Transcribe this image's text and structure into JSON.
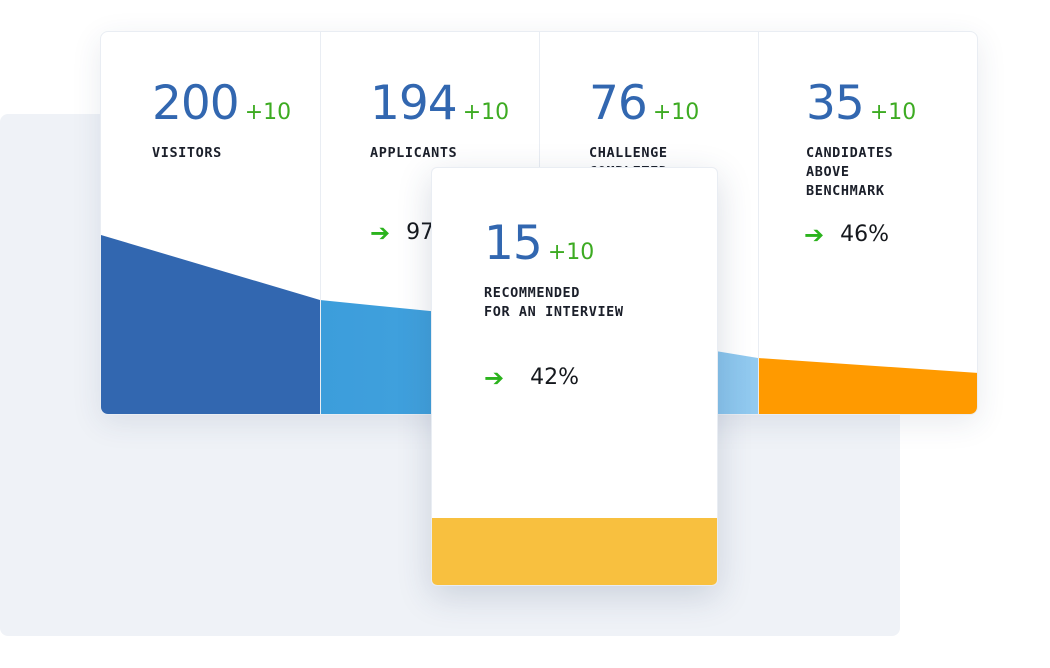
{
  "colors": {
    "number": "#3267b0",
    "delta": "#3dab22",
    "arrow": "#2bb31d",
    "stage_visitors": "#3267b0",
    "stage_applicants": "#3fa0db",
    "stage_challenge": "#8cc6ee",
    "stage_benchmark": "#ff9a00",
    "stage_recommended": "#f8c03f"
  },
  "stages": [
    {
      "value": "200",
      "delta": "+10",
      "label": "VISITORS",
      "rate": ""
    },
    {
      "value": "194",
      "delta": "+10",
      "label": "APPLICANTS",
      "rate": "97%"
    },
    {
      "value": "76",
      "delta": "+10",
      "label": "CHALLENGE\nCOMPLETED",
      "rate": ""
    },
    {
      "value": "35",
      "delta": "+10",
      "label": "CANDIDATES\nABOVE\nBENCHMARK",
      "rate": "46%"
    }
  ],
  "recommended": {
    "value": "15",
    "delta": "+10",
    "label": "RECOMMENDED\nFOR AN INTERVIEW",
    "rate": "42%"
  },
  "icons": {
    "arrow": "arrow-right-icon"
  }
}
